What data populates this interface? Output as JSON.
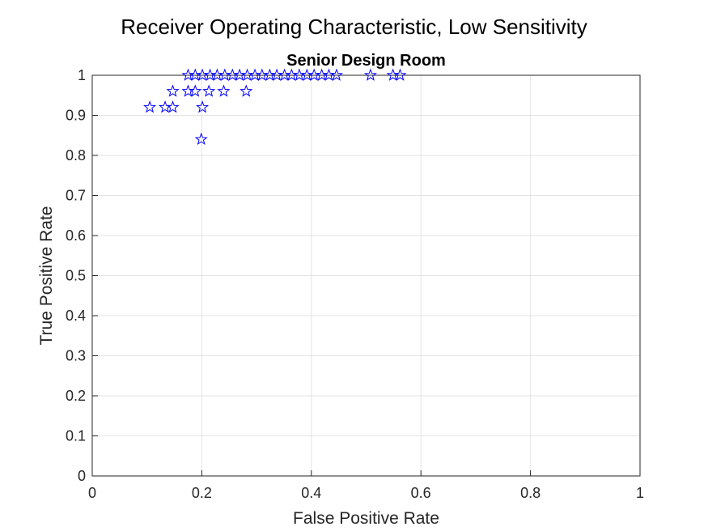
{
  "chart_data": {
    "type": "scatter",
    "title": "Receiver Operating Characteristic, Low Sensitivity",
    "subtitle": "Senior Design Room",
    "xlabel": "False Positive Rate",
    "ylabel": "True Positive Rate",
    "xlim": [
      0,
      1
    ],
    "ylim": [
      0,
      1
    ],
    "xticks": [
      "0",
      "0.2",
      "0.4",
      "0.6",
      "0.8",
      "1"
    ],
    "yticks": [
      "0",
      "0.1",
      "0.2",
      "0.3",
      "0.4",
      "0.5",
      "0.6",
      "0.7",
      "0.8",
      "0.9",
      "1"
    ],
    "grid": true,
    "marker": "pentagram",
    "marker_color": "#0000ff",
    "points": [
      {
        "x": 0.105,
        "y": 0.92
      },
      {
        "x": 0.133,
        "y": 0.92
      },
      {
        "x": 0.147,
        "y": 0.92
      },
      {
        "x": 0.147,
        "y": 0.96
      },
      {
        "x": 0.175,
        "y": 0.96
      },
      {
        "x": 0.188,
        "y": 0.96
      },
      {
        "x": 0.201,
        "y": 0.92
      },
      {
        "x": 0.199,
        "y": 0.84
      },
      {
        "x": 0.213,
        "y": 0.96
      },
      {
        "x": 0.24,
        "y": 0.96
      },
      {
        "x": 0.281,
        "y": 0.96
      },
      {
        "x": 0.175,
        "y": 1.0
      },
      {
        "x": 0.188,
        "y": 1.0
      },
      {
        "x": 0.201,
        "y": 1.0
      },
      {
        "x": 0.215,
        "y": 1.0
      },
      {
        "x": 0.228,
        "y": 1.0
      },
      {
        "x": 0.242,
        "y": 1.0
      },
      {
        "x": 0.256,
        "y": 1.0
      },
      {
        "x": 0.269,
        "y": 1.0
      },
      {
        "x": 0.283,
        "y": 1.0
      },
      {
        "x": 0.297,
        "y": 1.0
      },
      {
        "x": 0.31,
        "y": 1.0
      },
      {
        "x": 0.324,
        "y": 1.0
      },
      {
        "x": 0.337,
        "y": 1.0
      },
      {
        "x": 0.351,
        "y": 1.0
      },
      {
        "x": 0.364,
        "y": 1.0
      },
      {
        "x": 0.378,
        "y": 1.0
      },
      {
        "x": 0.392,
        "y": 1.0
      },
      {
        "x": 0.405,
        "y": 1.0
      },
      {
        "x": 0.419,
        "y": 1.0
      },
      {
        "x": 0.432,
        "y": 1.0
      },
      {
        "x": 0.446,
        "y": 1.0
      },
      {
        "x": 0.508,
        "y": 1.0
      },
      {
        "x": 0.549,
        "y": 1.0
      },
      {
        "x": 0.562,
        "y": 1.0
      }
    ]
  }
}
